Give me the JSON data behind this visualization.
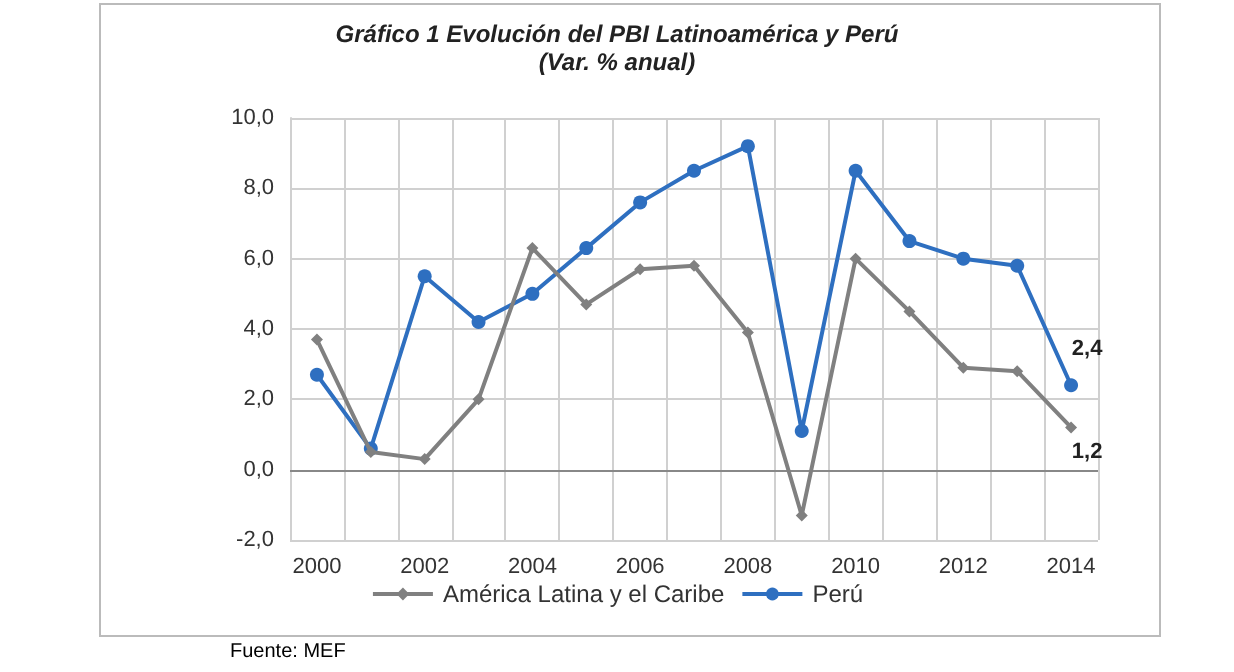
{
  "chart_data": {
    "type": "line",
    "title": "Gráfico 1 Evolución del PBI Latinoamérica y Perú",
    "subtitle": "(Var. % anual)",
    "categories": [
      "2000",
      null,
      "2002",
      null,
      "2004",
      null,
      "2006",
      null,
      "2008",
      null,
      "2010",
      null,
      "2012",
      null,
      "2014"
    ],
    "series": [
      {
        "name": "América Latina y el Caribe",
        "color": "#808080",
        "values": [
          3.7,
          0.5,
          0.3,
          2.0,
          6.3,
          4.7,
          5.7,
          5.8,
          3.9,
          -1.3,
          6.0,
          4.5,
          2.9,
          2.8,
          1.2
        ],
        "value_labels": [
          null,
          null,
          null,
          null,
          null,
          null,
          null,
          null,
          null,
          null,
          null,
          null,
          null,
          null,
          "1,2"
        ],
        "marker": "diamond"
      },
      {
        "name": "Perú",
        "color": "#2e6fc0",
        "values": [
          2.7,
          0.6,
          5.5,
          4.2,
          5.0,
          6.3,
          7.6,
          8.5,
          9.2,
          1.1,
          8.5,
          6.5,
          6.0,
          5.8,
          2.4
        ],
        "value_labels": [
          null,
          null,
          null,
          null,
          null,
          null,
          null,
          null,
          null,
          null,
          null,
          null,
          null,
          null,
          "2,4"
        ],
        "marker": "circle"
      }
    ],
    "ylim": [
      -2,
      10
    ],
    "yticks": [
      {
        "value": -2,
        "label": "-2,0"
      },
      {
        "value": 0,
        "label": "0,0"
      },
      {
        "value": 2,
        "label": "2,0"
      },
      {
        "value": 4,
        "label": "4,0"
      },
      {
        "value": 6,
        "label": "6,0"
      },
      {
        "value": 8,
        "label": "8,0"
      },
      {
        "value": 10,
        "label": "10,0"
      }
    ],
    "grid": true,
    "legend": "bottom",
    "annotations": [
      "Fuente: MEF"
    ]
  }
}
